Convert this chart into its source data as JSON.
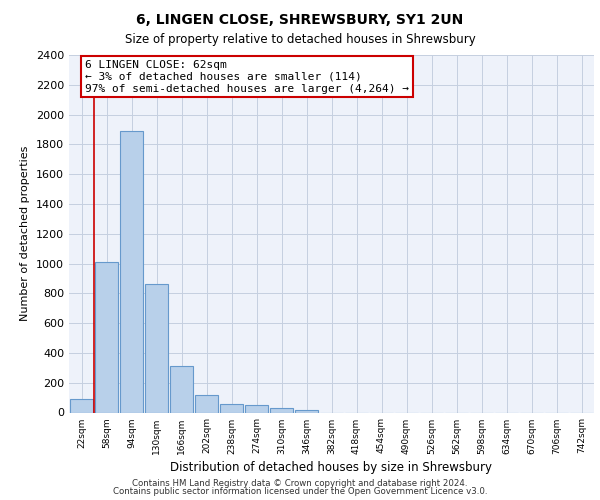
{
  "title1": "6, LINGEN CLOSE, SHREWSBURY, SY1 2UN",
  "title2": "Size of property relative to detached houses in Shrewsbury",
  "xlabel": "Distribution of detached houses by size in Shrewsbury",
  "ylabel": "Number of detached properties",
  "bar_labels": [
    "22sqm",
    "58sqm",
    "94sqm",
    "130sqm",
    "166sqm",
    "202sqm",
    "238sqm",
    "274sqm",
    "310sqm",
    "346sqm",
    "382sqm",
    "418sqm",
    "454sqm",
    "490sqm",
    "526sqm",
    "562sqm",
    "598sqm",
    "634sqm",
    "670sqm",
    "706sqm",
    "742sqm"
  ],
  "bar_values": [
    90,
    1010,
    1890,
    860,
    315,
    115,
    58,
    48,
    28,
    18,
    0,
    0,
    0,
    0,
    0,
    0,
    0,
    0,
    0,
    0,
    0
  ],
  "bar_color": "#b8d0ea",
  "bar_edge_color": "#6699cc",
  "annotation_line1": "6 LINGEN CLOSE: 62sqm",
  "annotation_line2": "← 3% of detached houses are smaller (114)",
  "annotation_line3": "97% of semi-detached houses are larger (4,264) →",
  "annotation_box_color": "white",
  "annotation_box_edge_color": "#cc0000",
  "vline_color": "#cc0000",
  "ylim": [
    0,
    2400
  ],
  "yticks": [
    0,
    200,
    400,
    600,
    800,
    1000,
    1200,
    1400,
    1600,
    1800,
    2000,
    2200,
    2400
  ],
  "footer1": "Contains HM Land Registry data © Crown copyright and database right 2024.",
  "footer2": "Contains public sector information licensed under the Open Government Licence v3.0.",
  "bg_color": "#eef2fa",
  "grid_color": "#c5cfe0"
}
